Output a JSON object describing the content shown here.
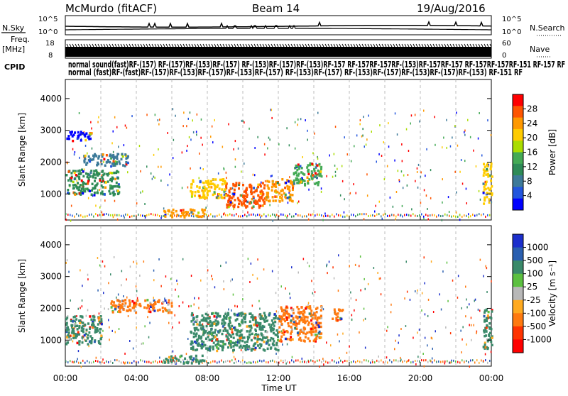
{
  "header": {
    "station": "McMurdo (fitACF)",
    "beam": "Beam 14",
    "date": "19/Aug/2016"
  },
  "noise_panel": {
    "left_label": "N.Sky",
    "right_label": "N.Search",
    "left_ticks": [
      "10^5",
      "10^0"
    ],
    "right_ticks": [
      "10^5",
      "10^0"
    ]
  },
  "freq_panel": {
    "left_label_1": "Freq.",
    "left_label_2": "[MHz]",
    "right_label": "Nave",
    "left_ticks": [
      "18",
      "8"
    ],
    "right_ticks": [
      "60",
      "0"
    ]
  },
  "cpid": {
    "label": "CPID",
    "row1": [
      "normal",
      "sound",
      "(fast)",
      "normal (fast)",
      "RF-157",
      "RF-(157)",
      "RF-(153)",
      "RF-157",
      "RF-(153)",
      "RF-157",
      "RF-(153)",
      "RF-157",
      "RF-(153)",
      "RF-157",
      "RF-157",
      "RF-157",
      "RF-157",
      "RF-157",
      "RF-157",
      "RF-157",
      "RF-151",
      "RF"
    ],
    "row2": [
      "normal",
      "(fast)",
      "RF-(153)",
      "RF-(157)",
      "RF-(153)",
      "RF-(157)",
      "RF-(153)",
      "RF-(157)",
      "RF-(153)",
      "RF-151",
      "RF-151",
      "RF"
    ],
    "row1_display": "normal sound(fast)RF-(157) RF-(157)RF-(153)RF-(157) RF-(153)RF-(157)RF-(153)RF-157 RF-157RF-157RF-(153)RF-157RF-157 RF-157RF-157RF-151 RF-157 RF",
    "row2_display": "normal (fast)RF-(fast)RF-(157)RF-(153)RF-(157)RF-(153)RF-(157) RF-(153)RF-(157) RF-(153)RF-(157)RF-(153)RF-(157)RF-(153) RF-151 RF"
  },
  "power_colorbar": {
    "label": "Power [dB]",
    "ticks": [
      "28",
      "24",
      "20",
      "16",
      "12",
      "8",
      "4"
    ],
    "colors": [
      "#ff0000",
      "#ff5500",
      "#ff9900",
      "#ffcc00",
      "#aadd00",
      "#44aa55",
      "#2e8b57",
      "#3d7a99",
      "#2255dd",
      "#0000ff"
    ]
  },
  "velocity_colorbar": {
    "label": "Velocity [m s⁻¹]",
    "ticks": [
      "1000",
      "500",
      "100",
      "25",
      "-25",
      "-100",
      "-500",
      "-1000"
    ],
    "colors": [
      "#1c2fcc",
      "#2a5fb0",
      "#3a8a6a",
      "#5cc040",
      "#b8b8b8",
      "#ffaa20",
      "#ff7a10",
      "#ff3300",
      "#ff0000"
    ]
  },
  "chart_data": [
    {
      "type": "heatmap",
      "title": "",
      "xlabel": "Time UT",
      "ylabel": "Slant Range [km]",
      "x_ticks": [
        "00:00",
        "04:00",
        "08:00",
        "12:00",
        "16:00",
        "20:00",
        "00:00"
      ],
      "x_range_hours": [
        0,
        24
      ],
      "y_ticks": [
        1000,
        2000,
        3000,
        4000
      ],
      "y_range_km": [
        180,
        4600
      ],
      "colorbar": "Power [dB]",
      "regions": [
        {
          "t0": 9.0,
          "t1": 11.2,
          "r0": 600,
          "r1": 1400,
          "level": 28
        },
        {
          "t0": 11.2,
          "t1": 12.8,
          "r0": 800,
          "r1": 1500,
          "level": 24
        },
        {
          "t0": 7.0,
          "t1": 9.0,
          "r0": 900,
          "r1": 1500,
          "level": 20
        },
        {
          "t0": 12.8,
          "t1": 14.4,
          "r0": 1300,
          "r1": 2000,
          "level": 16
        },
        {
          "t0": 0.0,
          "t1": 3.0,
          "r0": 1000,
          "r1": 1800,
          "level": 12
        },
        {
          "t0": 1.0,
          "t1": 3.5,
          "r0": 1900,
          "r1": 2300,
          "level": 8
        },
        {
          "t0": 5.5,
          "t1": 7.8,
          "r0": 300,
          "r1": 550,
          "level": 24
        },
        {
          "t0": 23.5,
          "t1": 24.0,
          "r0": 700,
          "r1": 2000,
          "level": 20
        },
        {
          "t0": 0.0,
          "t1": 1.5,
          "r0": 2700,
          "r1": 3000,
          "level": 4
        }
      ]
    },
    {
      "type": "heatmap",
      "title": "",
      "xlabel": "Time UT",
      "ylabel": "Slant Range [km]",
      "x_ticks": [
        "00:00",
        "04:00",
        "08:00",
        "12:00",
        "16:00",
        "20:00",
        "00:00"
      ],
      "x_range_hours": [
        0,
        24
      ],
      "y_ticks": [
        1000,
        2000,
        3000,
        4000
      ],
      "y_range_km": [
        180,
        4600
      ],
      "colorbar": "Velocity [m s⁻¹]",
      "regions": [
        {
          "t0": 7.0,
          "t1": 12.0,
          "r0": 700,
          "r1": 1900,
          "level": 100
        },
        {
          "t0": 12.0,
          "t1": 14.4,
          "r0": 1000,
          "r1": 2100,
          "level": -100
        },
        {
          "t0": 2.5,
          "t1": 6.0,
          "r0": 1900,
          "r1": 2300,
          "level": -100
        },
        {
          "t0": 0.0,
          "t1": 2.0,
          "r0": 900,
          "r1": 1800,
          "level": 100
        },
        {
          "t0": 5.5,
          "t1": 7.8,
          "r0": 300,
          "r1": 550,
          "level": 100
        },
        {
          "t0": 15.0,
          "t1": 15.6,
          "r0": 1600,
          "r1": 2000,
          "level": -100
        },
        {
          "t0": 23.5,
          "t1": 24.0,
          "r0": 700,
          "r1": 2000,
          "level": 100
        }
      ]
    }
  ]
}
